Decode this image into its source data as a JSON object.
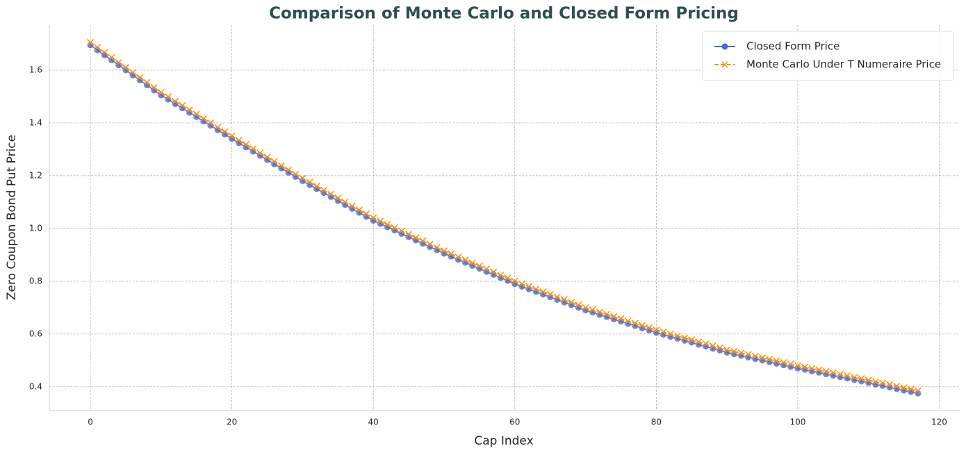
{
  "chart_data": {
    "type": "line",
    "title": "Comparison of Monte Carlo and Closed Form Pricing",
    "xlabel": "Cap Index",
    "ylabel": "Zero Coupon Bond Put Price",
    "x": [
      0,
      1,
      2,
      3,
      4,
      5,
      6,
      7,
      8,
      9,
      10,
      11,
      12,
      13,
      14,
      15,
      16,
      17,
      18,
      19,
      20,
      21,
      22,
      23,
      24,
      25,
      26,
      27,
      28,
      29,
      30,
      31,
      32,
      33,
      34,
      35,
      36,
      37,
      38,
      39,
      40,
      41,
      42,
      43,
      44,
      45,
      46,
      47,
      48,
      49,
      50,
      51,
      52,
      53,
      54,
      55,
      56,
      57,
      58,
      59,
      60,
      61,
      62,
      63,
      64,
      65,
      66,
      67,
      68,
      69,
      70,
      71,
      72,
      73,
      74,
      75,
      76,
      77,
      78,
      79,
      80,
      81,
      82,
      83,
      84,
      85,
      86,
      87,
      88,
      89,
      90,
      91,
      92,
      93,
      94,
      95,
      96,
      97,
      98,
      99,
      100,
      101,
      102,
      103,
      104,
      105,
      106,
      107,
      108,
      109,
      110,
      111,
      112,
      113,
      114,
      115,
      116,
      117
    ],
    "series": [
      {
        "name": "Closed Form Price",
        "color": "#4169e1",
        "marker": "o",
        "dash": false,
        "values": [
          1.695,
          1.676,
          1.657,
          1.638,
          1.619,
          1.6,
          1.581,
          1.562,
          1.543,
          1.524,
          1.505,
          1.489,
          1.472,
          1.456,
          1.439,
          1.423,
          1.406,
          1.39,
          1.373,
          1.357,
          1.34,
          1.324,
          1.308,
          1.292,
          1.276,
          1.26,
          1.244,
          1.228,
          1.212,
          1.196,
          1.18,
          1.165,
          1.15,
          1.135,
          1.12,
          1.105,
          1.09,
          1.075,
          1.06,
          1.045,
          1.03,
          1.018,
          1.005,
          0.993,
          0.98,
          0.968,
          0.955,
          0.943,
          0.93,
          0.918,
          0.905,
          0.894,
          0.882,
          0.871,
          0.859,
          0.848,
          0.836,
          0.825,
          0.813,
          0.802,
          0.79,
          0.78,
          0.77,
          0.76,
          0.75,
          0.74,
          0.73,
          0.72,
          0.71,
          0.7,
          0.69,
          0.682,
          0.673,
          0.665,
          0.656,
          0.648,
          0.639,
          0.631,
          0.622,
          0.614,
          0.605,
          0.598,
          0.59,
          0.583,
          0.575,
          0.568,
          0.56,
          0.553,
          0.545,
          0.538,
          0.53,
          0.524,
          0.518,
          0.512,
          0.506,
          0.5,
          0.494,
          0.488,
          0.482,
          0.476,
          0.47,
          0.465,
          0.459,
          0.454,
          0.448,
          0.443,
          0.437,
          0.432,
          0.426,
          0.421,
          0.415,
          0.409,
          0.404,
          0.398,
          0.392,
          0.386,
          0.381,
          0.375
        ]
      },
      {
        "name": "Monte Carlo Under T Numeraire Price",
        "color": "#ff8c00",
        "marker": "x",
        "dash": true,
        "values": [
          1.705,
          1.686,
          1.667,
          1.648,
          1.629,
          1.61,
          1.591,
          1.572,
          1.553,
          1.534,
          1.515,
          1.499,
          1.482,
          1.466,
          1.449,
          1.433,
          1.416,
          1.4,
          1.383,
          1.367,
          1.35,
          1.334,
          1.318,
          1.302,
          1.286,
          1.27,
          1.254,
          1.238,
          1.222,
          1.206,
          1.19,
          1.175,
          1.16,
          1.145,
          1.13,
          1.115,
          1.1,
          1.085,
          1.07,
          1.055,
          1.04,
          1.028,
          1.015,
          1.003,
          0.99,
          0.978,
          0.965,
          0.953,
          0.94,
          0.928,
          0.915,
          0.904,
          0.892,
          0.881,
          0.869,
          0.858,
          0.846,
          0.835,
          0.823,
          0.812,
          0.8,
          0.79,
          0.78,
          0.77,
          0.76,
          0.75,
          0.74,
          0.73,
          0.72,
          0.71,
          0.7,
          0.692,
          0.683,
          0.675,
          0.666,
          0.658,
          0.649,
          0.641,
          0.632,
          0.624,
          0.615,
          0.608,
          0.6,
          0.593,
          0.585,
          0.578,
          0.57,
          0.563,
          0.555,
          0.548,
          0.54,
          0.534,
          0.528,
          0.522,
          0.516,
          0.51,
          0.504,
          0.498,
          0.492,
          0.486,
          0.48,
          0.475,
          0.469,
          0.464,
          0.458,
          0.453,
          0.447,
          0.442,
          0.436,
          0.431,
          0.425,
          0.419,
          0.414,
          0.408,
          0.402,
          0.396,
          0.391,
          0.385
        ]
      }
    ],
    "xlim": [
      -5.8,
      122.8
    ],
    "xticks": [
      0,
      20,
      40,
      60,
      80,
      100,
      120
    ],
    "ylim": [
      0.31,
      1.771
    ],
    "yticks": [
      {
        "value": 0.4,
        "label": "0.4"
      },
      {
        "value": 0.6,
        "label": "0.6"
      },
      {
        "value": 0.8,
        "label": "0.8"
      },
      {
        "value": 1.0,
        "label": "1.0"
      },
      {
        "value": 1.2,
        "label": "1.2"
      },
      {
        "value": 1.4,
        "label": "1.4"
      },
      {
        "value": 1.6,
        "label": "1.6"
      }
    ],
    "grid": true,
    "legend": "upper right"
  }
}
